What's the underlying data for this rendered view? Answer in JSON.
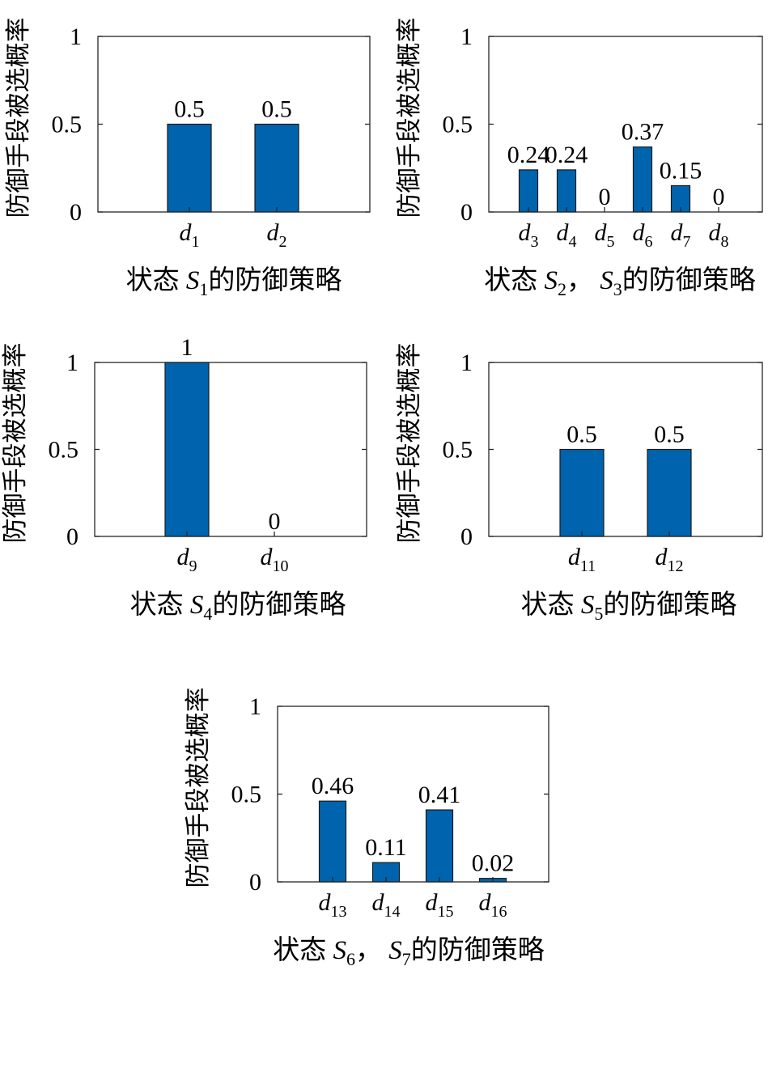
{
  "chart_data": [
    {
      "type": "bar",
      "categories": [
        {
          "base": "d",
          "sub": "1"
        },
        {
          "base": "d",
          "sub": "2"
        }
      ],
      "values": [
        0.5,
        0.5
      ],
      "data_labels": [
        "0.5",
        "0.5"
      ],
      "ylim": [
        0,
        1
      ],
      "yticks": [
        "0",
        "0.5",
        "1"
      ],
      "ylabel": "防御手段被选概率",
      "xlabel": {
        "pre": "状态 ",
        "parts": [
          {
            "base": "S",
            "sub": "1"
          }
        ],
        "post": "的防御策略"
      },
      "bar_color": "#0063ad",
      "grid": false
    },
    {
      "type": "bar",
      "categories": [
        {
          "base": "d",
          "sub": "3"
        },
        {
          "base": "d",
          "sub": "4"
        },
        {
          "base": "d",
          "sub": "5"
        },
        {
          "base": "d",
          "sub": "6"
        },
        {
          "base": "d",
          "sub": "7"
        },
        {
          "base": "d",
          "sub": "8"
        }
      ],
      "values": [
        0.24,
        0.24,
        0,
        0.37,
        0.15,
        0
      ],
      "data_labels": [
        "0.24",
        "0.24",
        "0",
        "0.37",
        "0.15",
        "0"
      ],
      "ylim": [
        0,
        1
      ],
      "yticks": [
        "0",
        "0.5",
        "1"
      ],
      "ylabel": "防御手段被选概率",
      "xlabel": {
        "pre": "状态 ",
        "parts": [
          {
            "base": "S",
            "sub": "2"
          },
          {
            "base": "S",
            "sub": "3"
          }
        ],
        "post": "的防御策略"
      },
      "bar_color": "#0063ad",
      "grid": false
    },
    {
      "type": "bar",
      "categories": [
        {
          "base": "d",
          "sub": "9"
        },
        {
          "base": "d",
          "sub": "10"
        }
      ],
      "values": [
        1,
        0
      ],
      "data_labels": [
        "1",
        "0"
      ],
      "ylim": [
        0,
        1
      ],
      "yticks": [
        "0",
        "0.5",
        "1"
      ],
      "ylabel": "防御手段被选概率",
      "xlabel": {
        "pre": "状态 ",
        "parts": [
          {
            "base": "S",
            "sub": "4"
          }
        ],
        "post": "的防御策略"
      },
      "bar_color": "#0063ad",
      "grid": false
    },
    {
      "type": "bar",
      "categories": [
        {
          "base": "d",
          "sub": "11"
        },
        {
          "base": "d",
          "sub": "12"
        }
      ],
      "values": [
        0.5,
        0.5
      ],
      "data_labels": [
        "0.5",
        "0.5"
      ],
      "ylim": [
        0,
        1
      ],
      "yticks": [
        "0",
        "0.5",
        "1"
      ],
      "ylabel": "防御手段被选概率",
      "xlabel": {
        "pre": "状态 ",
        "parts": [
          {
            "base": "S",
            "sub": "5"
          }
        ],
        "post": "的防御策略"
      },
      "bar_color": "#0063ad",
      "grid": false
    },
    {
      "type": "bar",
      "categories": [
        {
          "base": "d",
          "sub": "13"
        },
        {
          "base": "d",
          "sub": "14"
        },
        {
          "base": "d",
          "sub": "15"
        },
        {
          "base": "d",
          "sub": "16"
        }
      ],
      "values": [
        0.46,
        0.11,
        0.41,
        0.02
      ],
      "data_labels": [
        "0.46",
        "0.11",
        "0.41",
        "0.02"
      ],
      "ylim": [
        0,
        1
      ],
      "yticks": [
        "0",
        "0.5",
        "1"
      ],
      "ylabel": "防御手段被选概率",
      "xlabel": {
        "pre": "状态 ",
        "parts": [
          {
            "base": "S",
            "sub": "6"
          },
          {
            "base": "S",
            "sub": "7"
          }
        ],
        "post": "的防御策略"
      },
      "bar_color": "#0063ad",
      "grid": false
    }
  ],
  "separator": "，"
}
